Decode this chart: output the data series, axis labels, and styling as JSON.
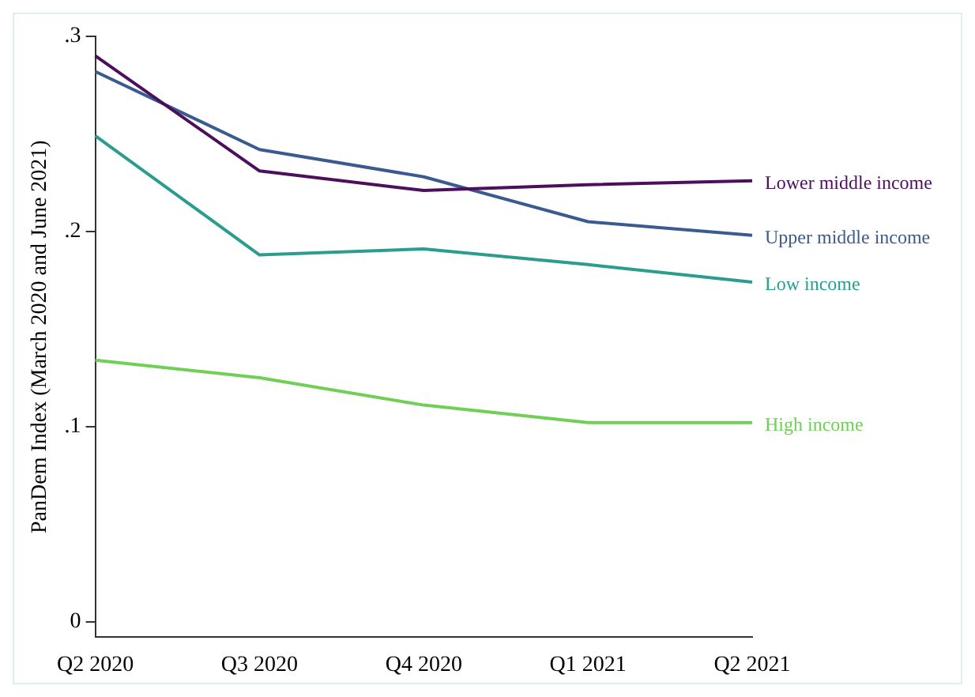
{
  "chart_data": {
    "type": "line",
    "ylabel": "PanDem Index (March 2020 and June 2021)",
    "categories": [
      "Q2 2020",
      "Q3 2020",
      "Q4 2020",
      "Q1 2021",
      "Q2 2021"
    ],
    "series": [
      {
        "name": "Lower middle income",
        "color": "#4b0f5c",
        "values": [
          0.29,
          0.231,
          0.221,
          0.224,
          0.226
        ]
      },
      {
        "name": "Upper middle income",
        "color": "#3b5a8f",
        "values": [
          0.282,
          0.242,
          0.228,
          0.205,
          0.198
        ]
      },
      {
        "name": "Low income",
        "color": "#2a9d8f",
        "values": [
          0.249,
          0.188,
          0.191,
          0.183,
          0.174
        ]
      },
      {
        "name": "High income",
        "color": "#6fcf57",
        "values": [
          0.134,
          0.125,
          0.111,
          0.102,
          0.102
        ]
      }
    ],
    "ylim": [
      -0.008,
      0.3
    ],
    "yticks": [
      {
        "value": 0,
        "label": "0"
      },
      {
        "value": 0.1,
        "label": ".1"
      },
      {
        "value": 0.2,
        "label": ".2"
      },
      {
        "value": 0.3,
        "label": ".3"
      }
    ],
    "grid": false,
    "legend": false,
    "marker": "none",
    "line_style": "solid"
  }
}
